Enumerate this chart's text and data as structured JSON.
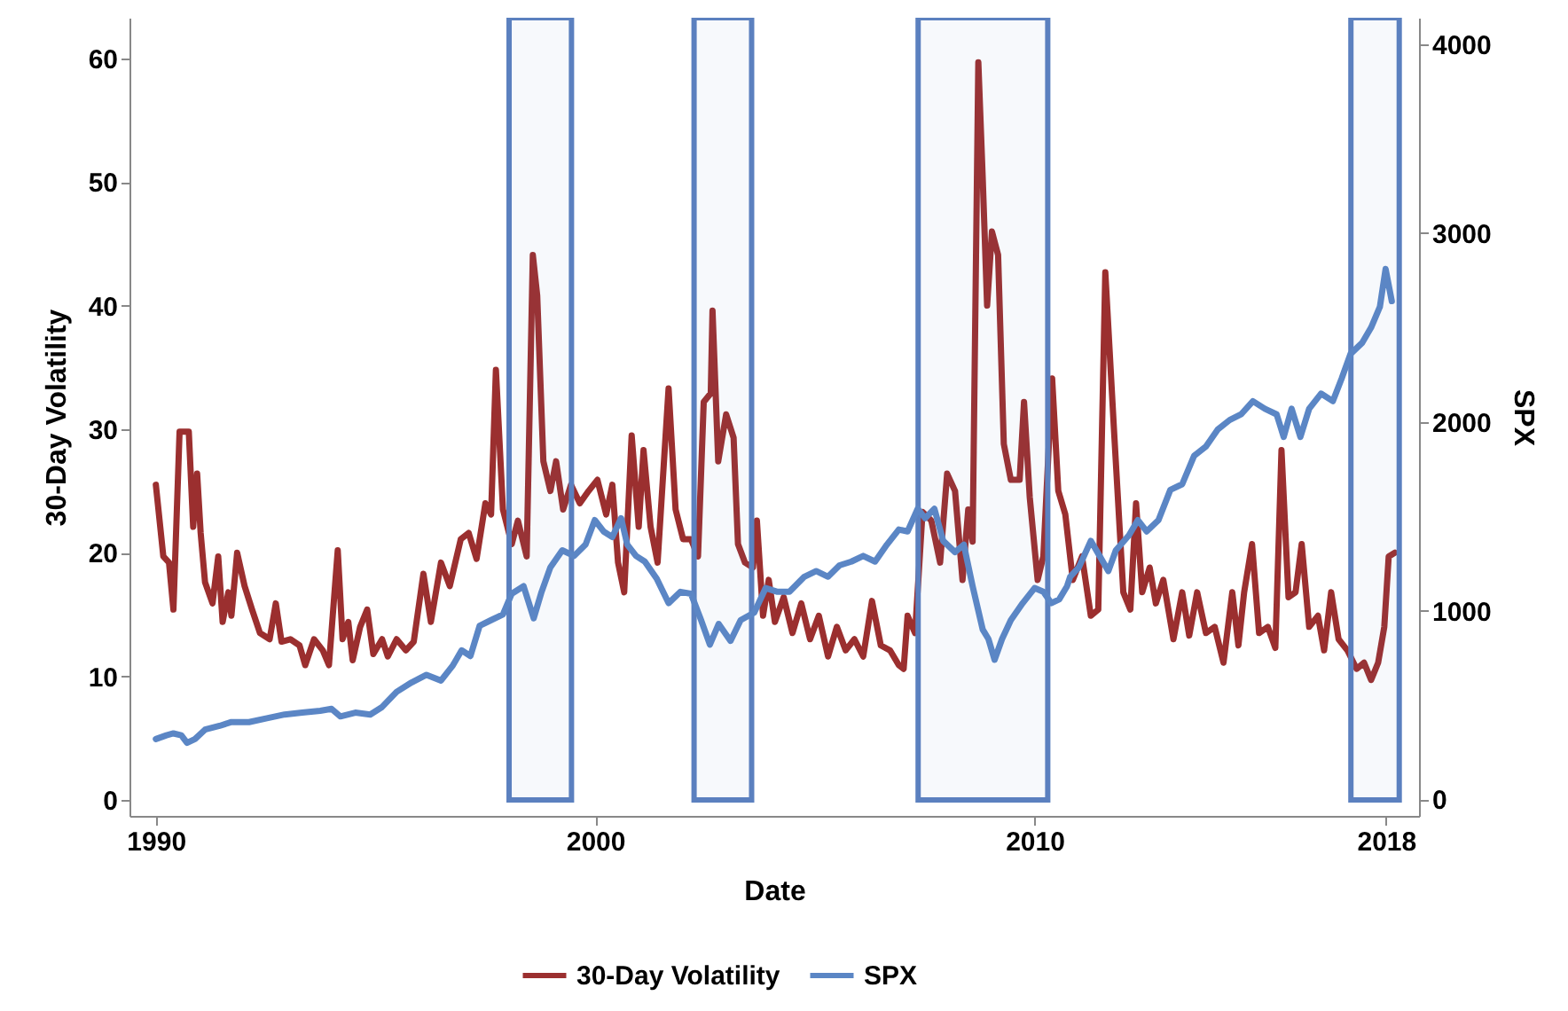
{
  "chart_data": {
    "type": "line",
    "xlabel": "Date",
    "ylabel": "30-Day Volatility",
    "y2label": "SPX",
    "legend": "bottom",
    "grid": false,
    "xlim": [
      1989.4,
      2018.75
    ],
    "xticks": [
      1990,
      2000,
      2010,
      2018
    ],
    "ylim": [
      -1.3,
      63.3
    ],
    "yticks": [
      0,
      10,
      20,
      30,
      40,
      50,
      60
    ],
    "y2lim": [
      -87,
      4141
    ],
    "y2ticks": [
      0,
      1000,
      2000,
      3000,
      4000
    ],
    "bands": [
      {
        "axis": "x",
        "from": 1998.04,
        "to": 1999.46,
        "color": "#5b80bf"
      },
      {
        "axis": "x",
        "from": 2002.25,
        "to": 2003.56,
        "color": "#5b80bf"
      },
      {
        "axis": "x",
        "from": 2007.35,
        "to": 2010.3,
        "color": "#5b80bf"
      },
      {
        "axis": "x",
        "from": 2017.2,
        "to": 2018.3,
        "color": "#5b80bf"
      }
    ],
    "series": [
      {
        "name": "30-Day Volatility",
        "color": "#9b2f2f",
        "x": [
          1990.0,
          1990.17,
          1990.3,
          1990.4,
          1990.54,
          1990.75,
          1990.85,
          1990.94,
          1991.02,
          1991.12,
          1991.29,
          1991.42,
          1991.52,
          1991.65,
          1991.72,
          1991.85,
          1992.02,
          1992.19,
          1992.37,
          1992.59,
          1992.73,
          1992.86,
          1993.06,
          1993.27,
          1993.4,
          1993.6,
          1993.8,
          1993.94,
          1994.14,
          1994.25,
          1994.38,
          1994.48,
          1994.65,
          1994.81,
          1994.95,
          1995.15,
          1995.28,
          1995.48,
          1995.69,
          1995.87,
          1996.09,
          1996.26,
          1996.49,
          1996.69,
          1996.94,
          1997.12,
          1997.3,
          1997.5,
          1997.63,
          1997.74,
          1997.9,
          1998.1,
          1998.24,
          1998.44,
          1998.58,
          1998.68,
          1998.82,
          1998.98,
          1999.11,
          1999.27,
          1999.45,
          1999.65,
          1999.85,
          2000.05,
          2000.25,
          2000.39,
          2000.52,
          2000.66,
          2000.83,
          2000.99,
          2001.1,
          2001.26,
          2001.42,
          2001.67,
          2001.83,
          2002.0,
          2002.18,
          2002.34,
          2002.47,
          2002.63,
          2002.67,
          2002.8,
          2002.98,
          2003.15,
          2003.25,
          2003.41,
          2003.59,
          2003.68,
          2003.82,
          2003.95,
          2004.09,
          2004.29,
          2004.49,
          2004.69,
          2004.89,
          2005.09,
          2005.3,
          2005.5,
          2005.7,
          2005.9,
          2006.1,
          2006.3,
          2006.5,
          2006.71,
          2006.91,
          2007.02,
          2007.11,
          2007.28,
          2007.45,
          2007.65,
          2007.85,
          2008.01,
          2008.19,
          2008.36,
          2008.49,
          2008.59,
          2008.72,
          2008.82,
          2008.92,
          2009.03,
          2009.17,
          2009.3,
          2009.46,
          2009.66,
          2009.76,
          2009.89,
          2010.07,
          2010.2,
          2010.4,
          2010.54,
          2010.7,
          2010.87,
          2011.08,
          2011.28,
          2011.45,
          2011.61,
          2011.81,
          2012.02,
          2012.18,
          2012.31,
          2012.45,
          2012.62,
          2012.76,
          2012.93,
          2013.16,
          2013.36,
          2013.52,
          2013.7,
          2013.9,
          2014.1,
          2014.3,
          2014.5,
          2014.64,
          2014.77,
          2014.95,
          2015.11,
          2015.31,
          2015.48,
          2015.62,
          2015.78,
          2015.94,
          2016.08,
          2016.25,
          2016.45,
          2016.59,
          2016.75,
          2016.92,
          2017.12,
          2017.33,
          2017.5,
          2017.66,
          2017.82,
          2017.96,
          2018.06,
          2018.2
        ],
        "values": [
          25.5,
          19.7,
          19.2,
          15.4,
          29.8,
          29.8,
          22.1,
          26.4,
          21.6,
          17.6,
          15.9,
          19.7,
          14.4,
          16.8,
          14.9,
          20.0,
          17.3,
          15.4,
          13.5,
          13.0,
          15.9,
          12.8,
          13.0,
          12.5,
          10.9,
          13.0,
          12.1,
          10.9,
          20.2,
          13.0,
          14.4,
          11.3,
          14.0,
          15.4,
          11.8,
          13.0,
          11.6,
          13.0,
          12.1,
          12.8,
          18.3,
          14.4,
          19.2,
          17.3,
          21.1,
          21.6,
          19.5,
          24.0,
          23.1,
          34.8,
          23.5,
          20.7,
          22.6,
          19.7,
          44.1,
          40.8,
          27.4,
          25.0,
          27.4,
          23.5,
          25.5,
          24.0,
          25.0,
          25.9,
          23.1,
          25.5,
          19.2,
          16.8,
          29.5,
          22.1,
          28.3,
          22.1,
          19.2,
          33.3,
          23.5,
          21.1,
          21.1,
          19.7,
          32.2,
          32.9,
          39.6,
          27.4,
          31.2,
          29.3,
          20.7,
          19.2,
          18.8,
          22.6,
          14.9,
          17.8,
          14.4,
          16.4,
          13.5,
          15.9,
          13.0,
          14.9,
          11.6,
          14.0,
          12.1,
          13.0,
          11.6,
          16.1,
          12.5,
          12.1,
          10.9,
          10.6,
          14.9,
          13.5,
          23.3,
          22.6,
          19.2,
          26.4,
          25.0,
          17.8,
          23.5,
          20.9,
          59.7,
          50.3,
          40.0,
          46.0,
          44.1,
          28.8,
          25.9,
          25.9,
          32.2,
          24.5,
          17.8,
          19.7,
          34.1,
          25.0,
          23.1,
          17.8,
          19.7,
          14.9,
          15.4,
          42.7,
          29.8,
          16.8,
          15.4,
          24.0,
          16.8,
          18.8,
          15.9,
          17.8,
          13.0,
          16.8,
          13.3,
          16.8,
          13.5,
          14.0,
          11.1,
          16.8,
          12.5,
          16.8,
          20.7,
          13.5,
          14.0,
          12.3,
          28.3,
          16.4,
          16.8,
          20.7,
          14.0,
          14.9,
          12.1,
          16.8,
          13.0,
          12.1,
          10.6,
          11.1,
          9.7,
          11.1,
          14.0,
          19.7,
          20.0
        ]
      },
      {
        "name": "SPX",
        "color": "#5b86c5",
        "axis": "y2",
        "x": [
          1990.0,
          1990.24,
          1990.4,
          1990.58,
          1990.71,
          1990.89,
          1991.12,
          1991.45,
          1991.72,
          1992.12,
          1992.53,
          1992.93,
          1993.33,
          1993.74,
          1994.0,
          1994.2,
          1994.54,
          1994.88,
          1995.15,
          1995.48,
          1995.82,
          1996.16,
          1996.49,
          1996.76,
          1996.96,
          1997.16,
          1997.37,
          1997.63,
          1997.9,
          1998.1,
          1998.37,
          1998.6,
          1998.78,
          1998.98,
          1999.25,
          1999.52,
          1999.78,
          1999.99,
          2000.19,
          2000.39,
          2000.59,
          2000.73,
          2000.93,
          2001.13,
          2001.4,
          2001.67,
          2001.94,
          2002.18,
          2002.41,
          2002.61,
          2002.81,
          2003.08,
          2003.31,
          2003.62,
          2003.88,
          2004.15,
          2004.42,
          2004.76,
          2005.03,
          2005.3,
          2005.56,
          2005.83,
          2006.1,
          2006.37,
          2006.64,
          2006.91,
          2007.11,
          2007.34,
          2007.51,
          2007.72,
          2007.92,
          2008.19,
          2008.39,
          2008.59,
          2008.82,
          2008.95,
          2009.09,
          2009.26,
          2009.46,
          2009.73,
          2010.0,
          2010.2,
          2010.38,
          2010.56,
          2010.74,
          2010.81,
          2011.01,
          2011.28,
          2011.48,
          2011.68,
          2011.85,
          2012.15,
          2012.35,
          2012.55,
          2012.82,
          2013.09,
          2013.36,
          2013.63,
          2013.9,
          2014.17,
          2014.44,
          2014.7,
          2014.97,
          2015.24,
          2015.51,
          2015.67,
          2015.85,
          2016.05,
          2016.25,
          2016.52,
          2016.79,
          2016.99,
          2017.19,
          2017.46,
          2017.66,
          2017.86,
          2017.99,
          2018.13
        ],
        "values": [
          320,
          340,
          350,
          340,
          300,
          320,
          370,
          390,
          410,
          410,
          430,
          450,
          460,
          470,
          480,
          440,
          460,
          450,
          490,
          570,
          620,
          660,
          630,
          710,
          790,
          760,
          920,
          950,
          980,
          1090,
          1130,
          960,
          1100,
          1230,
          1320,
          1290,
          1350,
          1480,
          1420,
          1390,
          1490,
          1350,
          1290,
          1260,
          1170,
          1040,
          1100,
          1090,
          950,
          820,
          930,
          840,
          950,
          990,
          1120,
          1100,
          1100,
          1180,
          1210,
          1180,
          1240,
          1260,
          1290,
          1260,
          1350,
          1430,
          1420,
          1540,
          1490,
          1540,
          1370,
          1310,
          1350,
          1130,
          900,
          850,
          740,
          850,
          950,
          1040,
          1120,
          1100,
          1040,
          1060,
          1130,
          1180,
          1230,
          1370,
          1290,
          1210,
          1320,
          1400,
          1480,
          1420,
          1480,
          1640,
          1670,
          1820,
          1870,
          1960,
          2010,
          2040,
          2110,
          2070,
          2040,
          1920,
          2070,
          1920,
          2070,
          2150,
          2110,
          2230,
          2360,
          2420,
          2500,
          2610,
          2810,
          2640
        ]
      }
    ]
  }
}
